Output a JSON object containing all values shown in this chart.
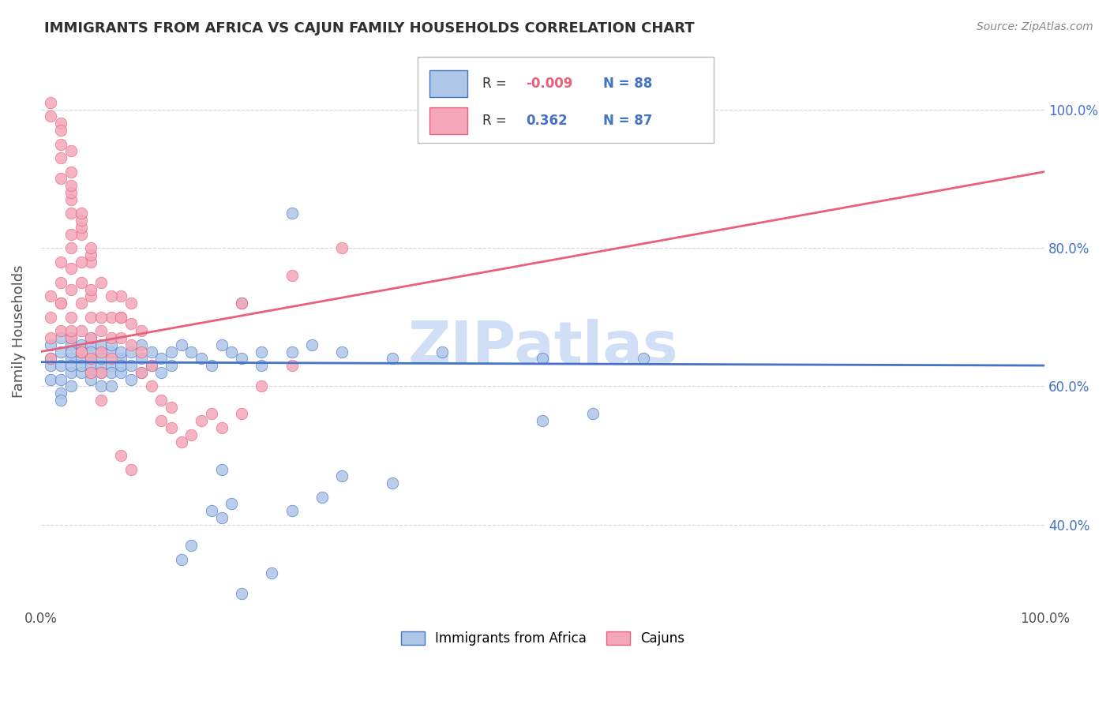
{
  "title": "IMMIGRANTS FROM AFRICA VS CAJUN FAMILY HOUSEHOLDS CORRELATION CHART",
  "source_text": "Source: ZipAtlas.com",
  "ylabel": "Family Households",
  "xlim": [
    0,
    100
  ],
  "ylim": [
    28,
    108
  ],
  "x_tick_labels": [
    "0.0%",
    "100.0%"
  ],
  "x_tick_positions": [
    0,
    100
  ],
  "y_tick_labels": [
    "40.0%",
    "60.0%",
    "80.0%",
    "100.0%"
  ],
  "y_tick_positions": [
    40,
    60,
    80,
    100
  ],
  "legend_r1": "R = -0.009",
  "legend_n1": "N = 88",
  "legend_r2": "R =   0.362",
  "legend_n2": "N = 87",
  "label1": "Immigrants from Africa",
  "label2": "Cajuns",
  "color_blue": "#aec6e8",
  "color_pink": "#f4a7b9",
  "line_color_blue": "#4472c4",
  "line_color_pink": "#e8607a",
  "watermark": "ZIPatlas",
  "watermark_color": "#d0dff5",
  "background_color": "#ffffff",
  "grid_color": "#cccccc",
  "title_color": "#303030",
  "axis_label_color": "#505050",
  "tick_color_right": "#4472c4",
  "blue_trend_start_y": 63.5,
  "blue_trend_end_y": 63.0,
  "pink_trend_start_y": 65.0,
  "pink_trend_end_y": 91.0,
  "blue_scatter_x": [
    1,
    1,
    1,
    1,
    2,
    2,
    2,
    2,
    2,
    2,
    3,
    3,
    3,
    3,
    3,
    3,
    3,
    4,
    4,
    4,
    4,
    4,
    5,
    5,
    5,
    5,
    5,
    5,
    5,
    6,
    6,
    6,
    6,
    6,
    6,
    7,
    7,
    7,
    7,
    7,
    8,
    8,
    8,
    8,
    9,
    9,
    9,
    10,
    10,
    10,
    11,
    11,
    12,
    12,
    13,
    13,
    14,
    15,
    16,
    17,
    18,
    19,
    20,
    22,
    25,
    27,
    30,
    22,
    17,
    19,
    25,
    28,
    18,
    15,
    14,
    23,
    20,
    35,
    40,
    50,
    50,
    60,
    55,
    35,
    30,
    18,
    20,
    25
  ],
  "blue_scatter_y": [
    63,
    61,
    64,
    66,
    63,
    65,
    67,
    61,
    59,
    58,
    64,
    66,
    62,
    63,
    65,
    67,
    60,
    64,
    66,
    62,
    65,
    63,
    64,
    66,
    62,
    63,
    65,
    67,
    61,
    65,
    63,
    66,
    62,
    64,
    60,
    65,
    63,
    66,
    62,
    60,
    64,
    62,
    65,
    63,
    65,
    63,
    61,
    64,
    62,
    66,
    65,
    63,
    64,
    62,
    65,
    63,
    66,
    65,
    64,
    63,
    66,
    65,
    64,
    65,
    65,
    66,
    65,
    63,
    42,
    43,
    42,
    44,
    41,
    37,
    35,
    33,
    30,
    64,
    65,
    64,
    55,
    64,
    56,
    46,
    47,
    48,
    72,
    85
  ],
  "pink_scatter_x": [
    1,
    1,
    1,
    1,
    2,
    2,
    2,
    2,
    3,
    3,
    3,
    3,
    3,
    4,
    4,
    4,
    4,
    5,
    5,
    5,
    5,
    6,
    6,
    6,
    7,
    7,
    7,
    8,
    8,
    8,
    9,
    9,
    9,
    10,
    10,
    10,
    11,
    11,
    12,
    12,
    13,
    13,
    14,
    15,
    16,
    17,
    18,
    20,
    22,
    25,
    3,
    4,
    5,
    6,
    7,
    8,
    2,
    3,
    4,
    5,
    3,
    4,
    5,
    6,
    3,
    4,
    5,
    2,
    3,
    4,
    2,
    3,
    2,
    3,
    2,
    1,
    1,
    2,
    3,
    4,
    5,
    6,
    20,
    25,
    30,
    8,
    9
  ],
  "pink_scatter_y": [
    73,
    70,
    67,
    64,
    78,
    75,
    72,
    68,
    80,
    77,
    74,
    70,
    67,
    75,
    72,
    68,
    65,
    73,
    70,
    67,
    64,
    68,
    65,
    62,
    70,
    67,
    64,
    73,
    70,
    67,
    72,
    69,
    66,
    68,
    65,
    62,
    63,
    60,
    58,
    55,
    57,
    54,
    52,
    53,
    55,
    56,
    54,
    56,
    60,
    63,
    85,
    82,
    78,
    75,
    73,
    70,
    90,
    87,
    83,
    79,
    82,
    78,
    74,
    70,
    88,
    84,
    80,
    93,
    89,
    85,
    95,
    91,
    98,
    94,
    97,
    101,
    99,
    72,
    68,
    65,
    62,
    58,
    72,
    76,
    80,
    50,
    48
  ]
}
